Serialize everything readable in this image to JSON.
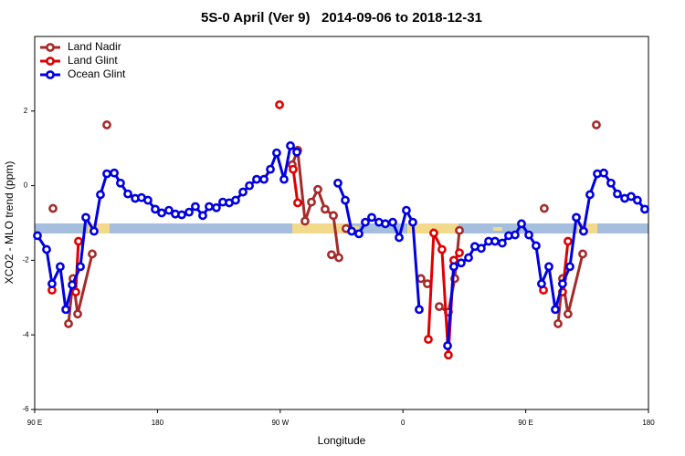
{
  "chart_data": {
    "type": "line",
    "title": "5S-0 April (Ver 9)   2014-09-06 to 2018-12-31",
    "xlabel": "Longitude",
    "ylabel": "XCO2 - MLO trend (ppm)",
    "xlim": [
      90,
      540
    ],
    "ylim": [
      -6,
      4
    ],
    "xticks": [
      {
        "value": 90,
        "label": "90 E"
      },
      180,
      {
        "value": 270,
        "label": "90 W"
      },
      {
        "value": 360,
        "label": "0"
      },
      {
        "value": 450,
        "label": "90 E"
      },
      {
        "value": 540,
        "label": "180"
      }
    ],
    "yticks": [
      -6,
      -4,
      -2,
      0,
      2
    ],
    "legend": "upper left",
    "series": [
      {
        "name": "Land Nadir",
        "color": "#a52a2a",
        "x": [
          103.4,
          null,
          114.8,
          118.1,
          121.5,
          132.2,
          null,
          142.9,
          null,
          278.8,
          282.8,
          288.2,
          292.9,
          297.6,
          302.9,
          309.0,
          313.0,
          null,
          307.6,
          null,
          318.3,
          null,
          373.2,
          377.9,
          null,
          386.6,
          393.3,
          398.0,
          401.4,
          null,
          463.6,
          null,
          473.7,
          477.0,
          481.0,
          491.8,
          null,
          501.8
        ],
        "values": [
          -0.61,
          null,
          -3.7,
          -2.49,
          -3.44,
          -1.83,
          null,
          1.63,
          null,
          0.56,
          0.95,
          -0.95,
          -0.44,
          -0.1,
          -0.63,
          -0.8,
          -1.93,
          null,
          -1.85,
          null,
          -1.15,
          null,
          -2.49,
          -2.63,
          null,
          -3.24,
          -3.39,
          -2.49,
          -1.2,
          null,
          -0.61,
          null,
          -3.7,
          -2.49,
          -3.44,
          -1.83,
          null,
          1.63
        ]
      },
      {
        "name": "Land Glint",
        "color": "#e00000",
        "x": [
          102.7,
          null,
          120.1,
          122.1,
          null,
          269.5,
          null,
          279.5,
          282.8,
          null,
          378.6,
          382.6,
          388.6,
          393.3,
          397.3,
          401.4,
          null,
          463.0,
          null,
          477.0,
          481.0
        ],
        "values": [
          -2.8,
          null,
          -2.85,
          -1.49,
          null,
          2.17,
          null,
          0.44,
          -0.46,
          null,
          -4.12,
          -1.27,
          -1.71,
          -4.54,
          -2.0,
          -1.8,
          null,
          -2.8,
          null,
          -2.85,
          -1.49
        ]
      },
      {
        "name": "Ocean Glint",
        "color": "#0000e0",
        "x": [
          92.0,
          98.7,
          102.7,
          108.7,
          112.8,
          117.5,
          123.5,
          127.5,
          133.5,
          138.2,
          142.9,
          148.3,
          152.9,
          158.3,
          163.7,
          168.3,
          173.0,
          178.4,
          183.1,
          188.4,
          193.1,
          197.8,
          203.2,
          207.8,
          213.2,
          217.9,
          223.2,
          227.9,
          232.6,
          237.3,
          242.7,
          247.4,
          252.7,
          258.1,
          262.8,
          267.4,
          272.8,
          277.5,
          282.2,
          null,
          312.3,
          317.7,
          322.4,
          327.7,
          332.4,
          337.1,
          342.4,
          347.1,
          352.5,
          357.2,
          362.5,
          367.2,
          371.9,
          null,
          392.7,
          397.3,
          402.7,
          408.1,
          412.7,
          417.4,
          422.8,
          427.5,
          432.8,
          437.5,
          442.2,
          446.9,
          452.3,
          457.6,
          461.6,
          467.0,
          471.7,
          477.0,
          482.4,
          487.1,
          492.4,
          497.1,
          502.5,
          507.2,
          512.5,
          517.2,
          522.6,
          527.3,
          531.9,
          537.3
        ],
        "values": [
          -1.34,
          -1.71,
          -2.63,
          -2.17,
          -3.32,
          -2.66,
          -2.17,
          -0.85,
          -1.22,
          -0.24,
          0.32,
          0.34,
          0.07,
          -0.22,
          -0.34,
          -0.32,
          -0.39,
          -0.63,
          -0.73,
          -0.66,
          -0.76,
          -0.78,
          -0.71,
          -0.56,
          -0.8,
          -0.56,
          -0.59,
          -0.44,
          -0.46,
          -0.39,
          -0.17,
          0.0,
          0.17,
          0.17,
          0.44,
          0.88,
          0.17,
          1.07,
          0.9,
          null,
          0.07,
          -0.39,
          -1.22,
          -1.29,
          -0.98,
          -0.85,
          -0.98,
          -1.02,
          -0.98,
          -1.39,
          -0.66,
          -0.98,
          -3.32,
          null,
          -4.29,
          -2.17,
          -2.07,
          -1.93,
          -1.63,
          -1.68,
          -1.49,
          -1.49,
          -1.54,
          -1.34,
          -1.32,
          -1.02,
          -1.32,
          -1.61,
          -2.63,
          -2.17,
          -3.32,
          -2.63,
          -2.17,
          -0.85,
          -1.22,
          -0.24,
          0.32,
          0.34,
          0.07,
          -0.22,
          -0.34,
          -0.29,
          -0.39,
          -0.63
        ]
      }
    ]
  }
}
